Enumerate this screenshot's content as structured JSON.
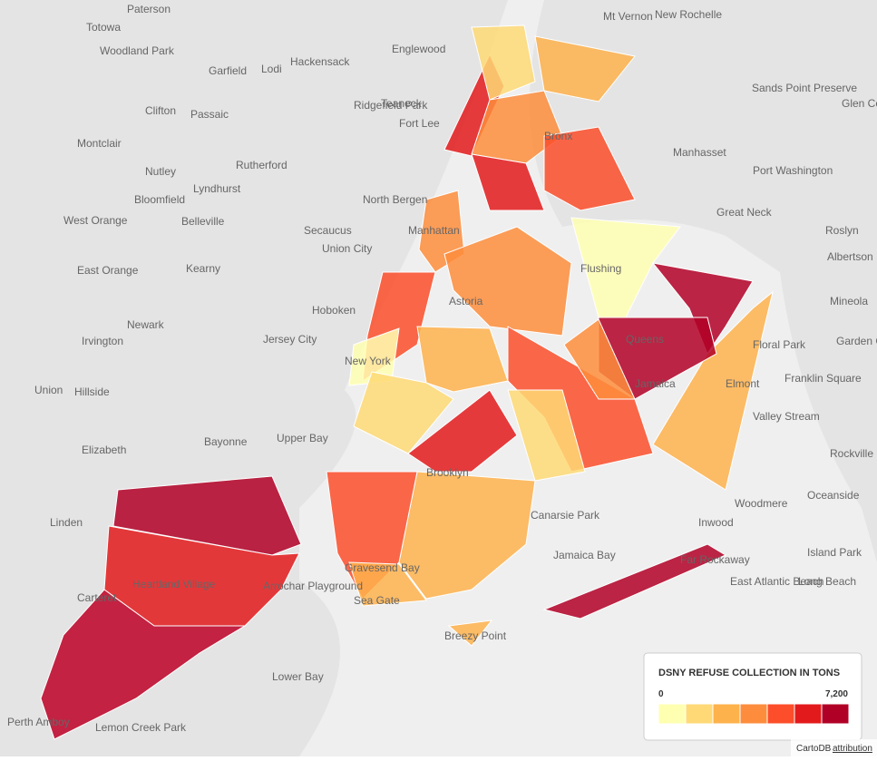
{
  "map": {
    "labels": [
      "Paterson",
      "Totowa",
      "Woodland Park",
      "Clifton",
      "Passaic",
      "Garfield",
      "Lodi",
      "Hackensack",
      "Englewood",
      "Fort Lee",
      "Ridgefield Park",
      "Teaneck",
      "Rutherford",
      "Nutley",
      "Montclair",
      "Bloomfield",
      "West Orange",
      "Lyndhurst",
      "Belleville",
      "North Bergen",
      "Secaucus",
      "Union City",
      "Kearny",
      "East Orange",
      "Newark",
      "Hoboken",
      "Jersey City",
      "Irvington",
      "Union",
      "Hillside",
      "Elizabeth",
      "Bayonne",
      "Linden",
      "Carteret",
      "Perth Amboy",
      "Manhattan",
      "New York",
      "Astoria",
      "Flushing",
      "Bronx",
      "Queens",
      "Jamaica",
      "Brooklyn",
      "Canarsie Park",
      "Mt Vernon",
      "New Rochelle",
      "Great Neck",
      "Manhasset",
      "Port Washington",
      "Mineola",
      "Floral Park",
      "Franklin Square",
      "Valley Stream",
      "Elmont",
      "Rockville Centre",
      "Oceanside",
      "Woodmere",
      "Inwood",
      "Far Rockaway",
      "Long Beach",
      "Island Park",
      "East Atlantic Beach",
      "Jamaica Bay",
      "Breezy Point",
      "Sea Gate",
      "Gravesend Bay",
      "Lower Bay",
      "Upper Bay",
      "Arrochar Playground",
      "Heartland Village",
      "Lemon Creek Park",
      "Sands Point Preserve",
      "Glen Cove",
      "Roslyn",
      "Albertson",
      "Garden City"
    ],
    "districts": [
      "#b10026",
      "#e31a1c",
      "#bd0026",
      "#e31a1c",
      "#fd8d3c",
      "#fc4e2a",
      "#ffffb2",
      "#fed976",
      "#feb24c",
      "#fd8d3c",
      "#fc4e2a",
      "#e31a1c",
      "#ffffb2",
      "#b10026",
      "#feb24c",
      "#b10026",
      "#fd8d3c",
      "#fc4e2a",
      "#feb24c",
      "#fed976",
      "#e31a1c",
      "#fed976",
      "#feb24c",
      "#fc4e2a",
      "#b10026",
      "#feb24c",
      "#fd8d3c",
      "#feb24c"
    ],
    "legend": {
      "title": "DSNY REFUSE COLLECTION IN TONS",
      "min": 0,
      "max": {
        "value": 7200,
        "label": "7,200"
      },
      "colors": [
        "#ffffb2",
        "#fed976",
        "#feb24c",
        "#fd8d3c",
        "#fc4e2a",
        "#e31a1c",
        "#b10026"
      ]
    },
    "attribution": {
      "source": "CartoDB",
      "link": "attribution"
    }
  }
}
